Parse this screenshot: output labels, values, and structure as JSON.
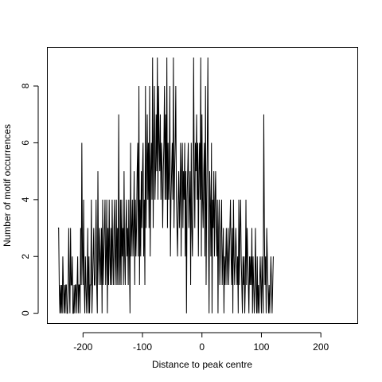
{
  "chart_data": {
    "type": "line",
    "title": "",
    "xlabel": "Distance to peak centre",
    "ylabel": "Number of motif occurrences",
    "xlim": [
      -260,
      262
    ],
    "ylim": [
      -0.36,
      9.36
    ],
    "xticks": [
      -200,
      -100,
      0,
      100,
      200
    ],
    "yticks": [
      0,
      2,
      4,
      6,
      8
    ],
    "xtick_labels": [
      "-200",
      "-100",
      "0",
      "100",
      "200"
    ],
    "ytick_labels": [
      "0",
      "2",
      "4",
      "6",
      "8"
    ],
    "grid": false,
    "legend": "none",
    "series": [
      {
        "x_start": -242,
        "x_step": 1,
        "values": [
          3,
          3,
          1,
          0,
          1,
          0,
          1,
          0,
          2,
          1,
          0,
          1,
          0,
          1,
          1,
          0,
          0,
          1,
          3,
          1,
          0,
          3,
          1,
          1,
          2,
          0,
          0,
          1,
          0,
          1,
          1,
          0,
          1,
          2,
          0,
          1,
          1,
          0,
          3,
          1,
          6,
          2,
          1,
          4,
          1,
          0,
          2,
          1,
          0,
          1,
          3,
          0,
          2,
          0,
          1,
          1,
          4,
          0,
          1,
          2,
          3,
          1,
          1,
          2,
          4,
          1,
          0,
          5,
          2,
          1,
          3,
          2,
          1,
          3,
          0,
          4,
          1,
          2,
          3,
          4,
          1,
          2,
          4,
          0,
          3,
          1,
          4,
          2,
          1,
          3,
          1,
          4,
          2,
          1,
          3,
          4,
          1,
          2,
          4,
          1,
          3,
          1,
          7,
          2,
          1,
          4,
          1,
          4,
          2,
          3,
          1,
          5,
          2,
          1,
          3,
          4,
          2,
          3,
          1,
          4,
          2,
          0,
          6,
          2,
          3,
          4,
          2,
          3,
          5,
          1,
          4,
          2,
          3,
          5,
          6,
          2,
          8,
          1,
          4,
          2,
          5,
          3,
          5,
          6,
          2,
          4,
          1,
          8,
          3,
          5,
          7,
          4,
          6,
          3,
          8,
          2,
          5,
          6,
          4,
          9,
          3,
          6,
          8,
          4,
          5,
          7,
          5,
          9,
          4,
          8,
          6,
          5,
          7,
          4,
          6,
          5,
          3,
          5,
          6,
          8,
          4,
          7,
          4,
          9,
          3,
          6,
          4,
          5,
          8,
          2,
          4,
          5,
          6,
          4,
          9,
          3,
          5,
          6,
          8,
          4,
          3,
          2,
          4,
          5,
          3,
          4,
          6,
          2,
          5,
          6,
          3,
          5,
          4,
          6,
          2,
          5,
          0,
          4,
          5,
          6,
          3,
          4,
          5,
          1,
          6,
          3,
          2,
          4,
          9,
          5,
          3,
          6,
          5,
          7,
          4,
          6,
          2,
          5,
          6,
          4,
          9,
          2,
          7,
          4,
          3,
          5,
          6,
          2,
          8,
          1,
          4,
          6,
          9,
          3,
          0,
          5,
          4,
          2,
          6,
          0,
          4,
          3,
          5,
          2,
          4,
          5,
          3,
          2,
          4,
          0,
          3,
          4,
          1,
          2,
          3,
          4,
          1,
          2,
          3,
          0,
          2,
          1,
          2,
          3,
          1,
          2,
          3,
          1,
          2,
          3,
          4,
          2,
          1,
          3,
          0,
          4,
          2,
          1,
          2,
          3,
          2,
          1,
          2,
          0,
          4,
          1,
          3,
          4,
          2,
          1,
          0,
          2,
          1,
          2,
          0,
          1,
          4,
          1,
          3,
          2,
          1,
          0,
          2,
          1,
          2,
          1,
          3,
          0,
          2,
          1,
          0,
          1,
          3,
          1,
          0,
          2,
          0,
          1,
          0,
          1,
          2,
          1,
          0,
          2,
          1,
          0,
          7,
          3,
          1,
          2,
          0,
          3,
          2,
          1,
          0,
          1,
          0,
          1,
          2,
          1,
          0,
          1,
          2
        ]
      }
    ]
  }
}
